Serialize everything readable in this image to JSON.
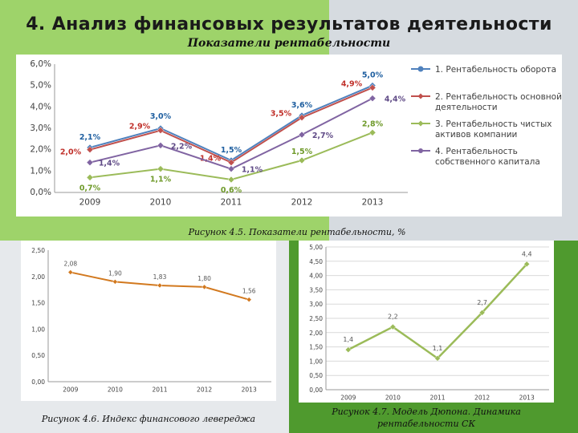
{
  "slide": {
    "title": "4. Анализ финансовых результатов деятельности",
    "subtitle": "Показатели рентабельности"
  },
  "captions": {
    "fig45": "Рисунок 4.5. Показатели рентабельности, %",
    "fig46": "Рисунок 4.6. Индекс финансового левереджа",
    "fig47_line1": "Рисунок 4.7. Модель Дюпона. Динамика",
    "fig47_line2": "рентабельности СК"
  },
  "colors": {
    "green_bg": "#9ed36a",
    "gray_bg": "#d6dbe0",
    "dark_green": "#4f9a2e"
  },
  "chart_data": [
    {
      "type": "line",
      "categories": [
        "2009",
        "2010",
        "2011",
        "2012",
        "2013"
      ],
      "ylim": [
        0,
        6
      ],
      "yticks": [
        "0,0%",
        "1,0%",
        "2,0%",
        "3,0%",
        "4,0%",
        "5,0%",
        "6,0%"
      ],
      "grid": false,
      "legend": "right",
      "series": [
        {
          "name": "1. Рентабельность оборота",
          "values": [
            2.1,
            3.0,
            1.5,
            3.6,
            5.0
          ],
          "labels": [
            "2,1%",
            "3,0%",
            "1,5%",
            "3,6%",
            "5,0%"
          ],
          "color": "#4f81bd",
          "label_color": "#1f5fa0"
        },
        {
          "name": "2. Рентабельность основной деятельности",
          "values": [
            2.0,
            2.9,
            1.4,
            3.5,
            4.9
          ],
          "labels": [
            "2,0%",
            "2,9%",
            "1,4%",
            "3,5%",
            "4,9%"
          ],
          "color": "#c0504d",
          "label_color": "#c0302a"
        },
        {
          "name": "3. Рентабельность чистых активов компании",
          "values": [
            0.7,
            1.1,
            0.6,
            1.5,
            2.8
          ],
          "labels": [
            "0,7%",
            "1,1%",
            "0,6%",
            "1,5%",
            "2,8%"
          ],
          "color": "#9bbb59",
          "label_color": "#6f9a2a"
        },
        {
          "name": "4. Рентабельность собственного капитала",
          "values": [
            1.4,
            2.2,
            1.1,
            2.7,
            4.4
          ],
          "labels": [
            "1,4%",
            "2,2%",
            "1,1%",
            "2,7%",
            "4,4%"
          ],
          "color": "#8064a2",
          "label_color": "#5f4a86"
        }
      ]
    },
    {
      "type": "line",
      "categories": [
        "2009",
        "2010",
        "2011",
        "2012",
        "2013"
      ],
      "ylim": [
        0,
        2.5
      ],
      "yticks": [
        "0,00",
        "0,50",
        "1,00",
        "1,50",
        "2,00",
        "2,50"
      ],
      "grid": false,
      "series": [
        {
          "values": [
            2.08,
            1.9,
            1.83,
            1.8,
            1.56
          ],
          "labels": [
            "2,08",
            "1,90",
            "1,83",
            "1,80",
            "1,56"
          ],
          "color": "#d2791f"
        }
      ]
    },
    {
      "type": "line",
      "categories": [
        "2009",
        "2010",
        "2011",
        "2012",
        "2013"
      ],
      "ylim": [
        0,
        5
      ],
      "yticks": [
        "0,00",
        "0,50",
        "1,00",
        "1,50",
        "2,00",
        "2,50",
        "3,00",
        "3,50",
        "4,00",
        "4,50",
        "5,00"
      ],
      "grid": true,
      "series": [
        {
          "values": [
            1.4,
            2.2,
            1.1,
            2.7,
            4.4
          ],
          "labels": [
            "1,4",
            "2,2",
            "1,1",
            "2,7",
            "4,4"
          ],
          "color": "#9bbb59"
        }
      ]
    }
  ]
}
